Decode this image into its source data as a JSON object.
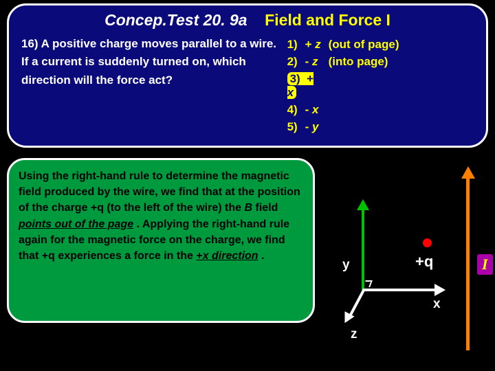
{
  "title": {
    "left": "Concep.Test 20. 9a",
    "right": "Field and Force I"
  },
  "question": "16) A positive charge moves parallel to a wire.  If a current is suddenly turned on, which direction will the force act?",
  "options": [
    {
      "num": "1)",
      "sym": "+ z",
      "paren": "(out of page)",
      "sym_ital": "z"
    },
    {
      "num": "2)",
      "sym": "-  z",
      "paren": "(into page)",
      "sym_ital": "z"
    },
    {
      "num": "3)",
      "sym": "+ x",
      "paren": "",
      "sym_ital": "x",
      "highlight": true
    },
    {
      "num": "4)",
      "sym": "- x",
      "paren": "",
      "sym_ital": "x"
    },
    {
      "num": "5)",
      "sym": "- y",
      "paren": "",
      "sym_ital": "y"
    }
  ],
  "explain": {
    "pre": "Using the right-hand rule to determine the magnetic field produced by the wire, we find that at the position of the charge +q (to the left of the wire) the ",
    "i1": "B",
    "mid1": " field ",
    "u1": "points out of the page",
    "mid2": ".   Applying the right-hand rule again for the magnetic force on the charge, we find that +q experiences a force in the ",
    "u2": "+x direction",
    "end": "."
  },
  "diagram": {
    "y_label": "y",
    "x_label": "x",
    "z_label": "z",
    "charge_label": "+q",
    "current_label": "I",
    "colors": {
      "y_axis": "#00c000",
      "axes": "#ffffff",
      "charge": "#ff0000",
      "wire": "#ff8000",
      "I_bg": "#aa00aa",
      "I_fg": "#ffff00"
    }
  }
}
